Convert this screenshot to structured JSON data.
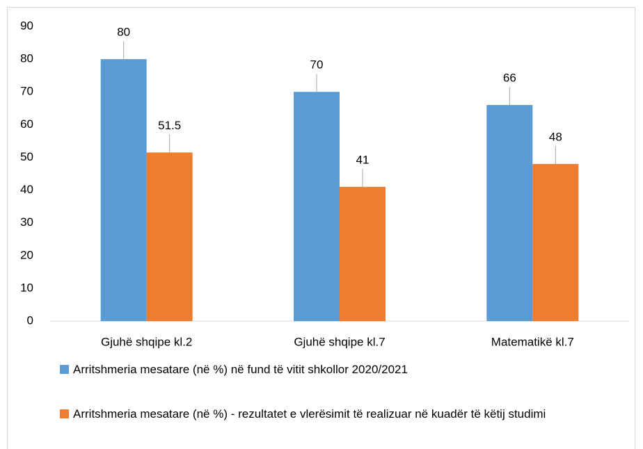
{
  "chart_data": {
    "type": "bar",
    "categories": [
      "Gjuhë shqipe kl.2",
      "Gjuhë shqipe kl.7",
      "Matematikë kl.7"
    ],
    "series": [
      {
        "name": "Arritshmeria mesatare (në %) në fund  të vitit shkollor 2020/2021",
        "color": "#5b9bd5",
        "values": [
          80,
          70,
          66
        ]
      },
      {
        "name": "Arritshmeria mesatare (në %) - rezultatet e vlerësimit të realizuar në kuadër të këtij studimi",
        "color": "#ed7d31",
        "values": [
          51.5,
          41,
          48
        ]
      }
    ],
    "ylim": [
      0,
      90
    ],
    "yticks": [
      0,
      10,
      20,
      30,
      40,
      50,
      60,
      70,
      80,
      90
    ],
    "grid": false,
    "legend": "bottom"
  }
}
